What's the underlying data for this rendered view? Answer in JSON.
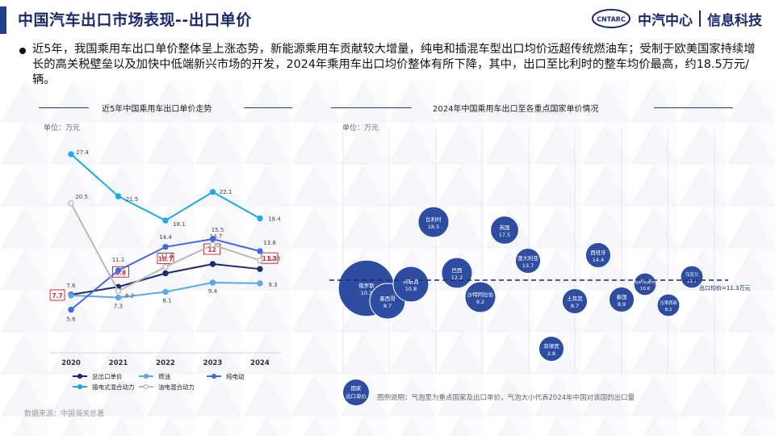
{
  "header": {
    "title": "中国汽车出口市场表现--出口单价",
    "logo_abbr": "CNTARC",
    "logo_name": "中汽中心",
    "logo_sub": "信息科技"
  },
  "summary": "近5年，我国乘用车出口单价整体呈上涨态势，新能源乘用车贡献较大增量，纯电和插混车型出口均价远超传统燃油车；受制于欧美国家持续增长的高关税壁垒以及加快中低端新兴市场的开发，2024年乘用车出口均价整体有所下降，其中，出口至比利时的整车均价最高，约18.5万元/辆。",
  "colors": {
    "title": "#1b2a6b",
    "accent": "#1f3f8f",
    "total": "#1b2a6b",
    "fuel": "#5aa9e6",
    "bev": "#4169e1",
    "phev": "#1fa8e8",
    "hev": "#b8b8b8",
    "bubble": "#2e4da0",
    "highlight": "#d03030"
  },
  "chart_data": [
    {
      "type": "line",
      "title": "近5年中国乘用车出口单价走势",
      "unit": "单位：万元",
      "categories": [
        "2020",
        "2021",
        "2022",
        "2023",
        "2024"
      ],
      "ylim": [
        0,
        30
      ],
      "series": [
        {
          "name": "总出口单价",
          "values": [
            7.7,
            8.8,
            10.7,
            12.0,
            11.3
          ],
          "highlight": true
        },
        {
          "name": "燃油",
          "values": [
            7.6,
            7.3,
            8.1,
            9.4,
            9.3
          ]
        },
        {
          "name": "纯电动",
          "values": [
            5.6,
            11.1,
            14.4,
            15.5,
            13.8
          ]
        },
        {
          "name": "插电式混合动力",
          "values": [
            27.4,
            21.5,
            18.1,
            22.1,
            18.4
          ]
        },
        {
          "name": "油电混合动力",
          "values": [
            20.5,
            8.2,
            11.6,
            14.7,
            12.5
          ]
        }
      ]
    },
    {
      "type": "scatter",
      "title": "2024年中国乘用车出口至各重点国家单价情况",
      "unit": "单位：万元",
      "xlabel": "国家",
      "ylabel": "出口单价",
      "ylim": [
        0,
        30
      ],
      "reference_line": {
        "value": 11.3,
        "label": "出口均价=11.3万元"
      },
      "points": [
        {
          "name": "俄罗斯",
          "value": 10.3,
          "size": 10
        },
        {
          "name": "墨西哥",
          "value": 8.7,
          "size": 4
        },
        {
          "name": "阿联酋",
          "value": 10.8,
          "size": 4
        },
        {
          "name": "比利时",
          "value": 18.5,
          "size": 3
        },
        {
          "name": "巴西",
          "value": 12.2,
          "size": 3
        },
        {
          "name": "沙特阿拉伯",
          "value": 9.2,
          "size": 3
        },
        {
          "name": "英国",
          "value": 17.5,
          "size": 2.5
        },
        {
          "name": "澳大利亚",
          "value": 13.7,
          "size": 2
        },
        {
          "name": "菲律宾",
          "value": 2.8,
          "size": 2
        },
        {
          "name": "土耳其",
          "value": 8.7,
          "size": 2
        },
        {
          "name": "西班牙",
          "value": 14.4,
          "size": 2
        },
        {
          "name": "泰国",
          "value": 8.9,
          "size": 2
        },
        {
          "name": "哈萨克斯坦",
          "value": 10.8,
          "size": 1.6
        },
        {
          "name": "马来西亚",
          "value": 8.2,
          "size": 1.6
        },
        {
          "name": "乌克兰",
          "value": 11.7,
          "size": 1.6
        }
      ],
      "legend_axis_label": "国家\n出口单价",
      "legend_note": "图例说明：气泡里为重点国家及出口单价，气泡大小代表2024年中国对该国的出口量"
    }
  ],
  "source": "数据来源：中国海关总署"
}
